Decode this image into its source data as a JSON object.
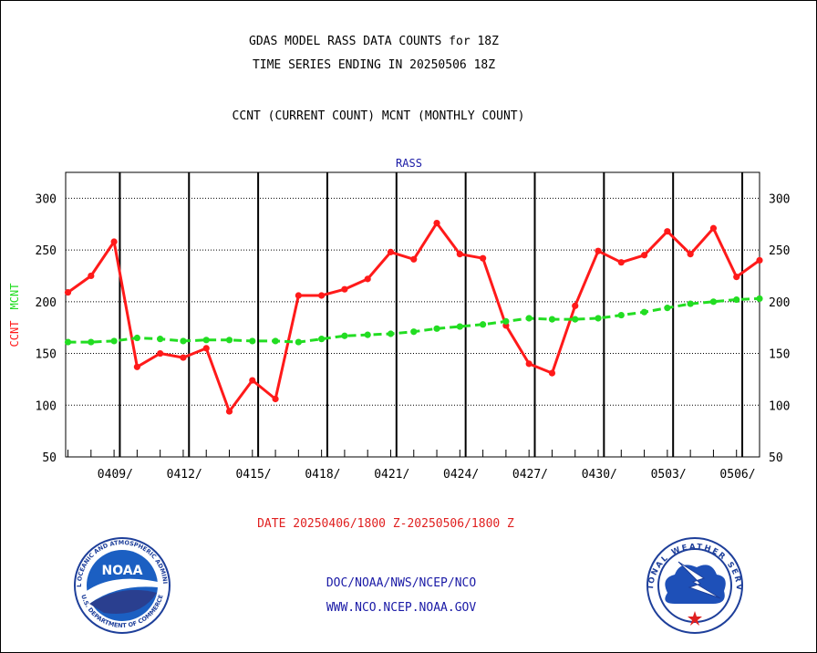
{
  "chart_data": {
    "type": "line",
    "title_lines": [
      "GDAS MODEL RASS DATA COUNTS for 18Z",
      "TIME SERIES ENDING IN 20250506 18Z",
      "CCNT (CURRENT COUNT) MCNT (MONTHLY COUNT)"
    ],
    "panel_label": "RASS",
    "ylabel_series": [
      "CCNT",
      "MCNT"
    ],
    "ylim": [
      50,
      325
    ],
    "yticks": [
      50,
      100,
      150,
      200,
      250,
      300
    ],
    "xlim": [
      -0.1,
      30.0
    ],
    "xtick_labels": [
      {
        "x": 3,
        "label": "0409/"
      },
      {
        "x": 6,
        "label": "0412/"
      },
      {
        "x": 9,
        "label": "0415/"
      },
      {
        "x": 12,
        "label": "0418/"
      },
      {
        "x": 15,
        "label": "0421/"
      },
      {
        "x": 18,
        "label": "0424/"
      },
      {
        "x": 21,
        "label": "0427/"
      },
      {
        "x": 24,
        "label": "0430/"
      },
      {
        "x": 27,
        "label": "0503/"
      },
      {
        "x": 30,
        "label": "0506/"
      }
    ],
    "major_vlines": [
      2.25,
      5.25,
      8.25,
      11.25,
      14.25,
      17.25,
      20.25,
      23.25,
      26.25,
      29.25
    ],
    "grid": "y-dotted",
    "xlabel": "DATE 20250406/1800 Z-20250506/1800 Z",
    "series": [
      {
        "name": "CCNT",
        "color": "#ff1a1a",
        "style": "solid",
        "values": [
          209,
          225,
          258,
          137,
          150,
          146,
          155,
          94,
          124,
          106,
          206,
          206,
          212,
          222,
          248,
          241,
          276,
          246,
          242,
          177,
          140,
          131,
          196,
          249,
          238,
          245,
          268,
          246,
          271,
          224,
          240
        ]
      },
      {
        "name": "MCNT",
        "color": "#22dd22",
        "style": "dashed",
        "values": [
          161,
          161,
          162,
          165,
          164,
          162,
          163,
          163,
          162,
          162,
          161,
          164,
          167,
          168,
          169,
          171,
          174,
          176,
          178,
          181,
          184,
          183,
          183,
          184,
          187,
          190,
          194,
          198,
          200,
          202,
          203
        ]
      }
    ]
  },
  "footer": {
    "line1": "DOC/NOAA/NWS/NCEP/NCO",
    "line2": "WWW.NCO.NCEP.NOAA.GOV"
  },
  "logos": {
    "noaa_text": "NOAA",
    "noaa_ring": "NATIONAL OCEANIC AND ATMOSPHERIC ADMINISTRATION",
    "noaa_bottom": "U.S. DEPARTMENT OF COMMERCE",
    "nws_ring": "NATIONAL WEATHER SERVICE"
  }
}
